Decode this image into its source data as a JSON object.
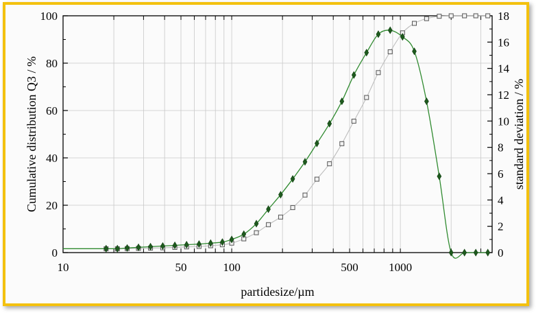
{
  "colors": {
    "frame": "#f3c10e",
    "cumulative_series": "#bdbdbd",
    "deviation_series": "#2f8a2f",
    "deviation_marker": "#1e5a1e",
    "grid": "#c8c8c8"
  },
  "chart_data": {
    "type": "line",
    "title": "",
    "xlabel": "partidesize/µm",
    "ylabel": "Cumulative distribution Q3 / %",
    "y2label": "standard deviation / %",
    "xscale": "log",
    "xlim": [
      10,
      3500
    ],
    "ylim": [
      0,
      100
    ],
    "y2lim": [
      0,
      18
    ],
    "x_ticks": [
      10,
      50,
      100,
      500,
      1000
    ],
    "x_tick_labels": [
      "10",
      "50",
      "100",
      "500",
      "1000"
    ],
    "y_ticks": [
      0,
      20,
      40,
      60,
      80,
      100
    ],
    "y_tick_labels": [
      "0",
      "20",
      "40",
      "60",
      "80",
      "100"
    ],
    "y2_ticks": [
      0,
      2,
      4,
      6,
      8,
      10,
      12,
      14,
      16,
      18
    ],
    "y2_tick_labels": [
      "0",
      "2",
      "4",
      "6",
      "8",
      "10",
      "12",
      "14",
      "16",
      "18"
    ],
    "grid": true,
    "legend": "none",
    "series": [
      {
        "axis": "left",
        "marker": "square",
        "x": [
          18,
          21,
          24,
          28,
          33,
          39,
          46,
          54,
          64,
          75,
          88,
          100,
          118,
          140,
          165,
          195,
          230,
          272,
          320,
          380,
          450,
          530,
          630,
          740,
          870,
          1030,
          1210,
          1430,
          1700,
          2000,
          2400,
          2800,
          3300
        ],
        "values": [
          1.6,
          1.6,
          1.7,
          1.8,
          1.9,
          2.0,
          2.2,
          2.4,
          2.6,
          2.9,
          3.3,
          4.0,
          5.8,
          8.4,
          11.8,
          15.0,
          19.0,
          24.3,
          31.0,
          37.5,
          46.0,
          55.5,
          65.5,
          76.0,
          84.8,
          92.8,
          96.8,
          98.8,
          99.8,
          100,
          100,
          100,
          100
        ]
      },
      {
        "axis": "right",
        "marker": "diamond",
        "x": [
          18,
          21,
          24,
          28,
          33,
          39,
          46,
          54,
          64,
          75,
          88,
          100,
          118,
          140,
          165,
          195,
          230,
          272,
          320,
          380,
          450,
          530,
          630,
          740,
          870,
          1030,
          1210,
          1430,
          1700,
          2000,
          2400,
          2800,
          3300
        ],
        "values": [
          0.3,
          0.3,
          0.35,
          0.4,
          0.45,
          0.5,
          0.55,
          0.6,
          0.65,
          0.72,
          0.8,
          1.0,
          1.4,
          2.2,
          3.3,
          4.4,
          5.6,
          6.9,
          8.3,
          9.8,
          11.5,
          13.5,
          15.2,
          16.6,
          16.9,
          16.4,
          15.3,
          11.5,
          5.8,
          0.0,
          0.0,
          0.0,
          0.0
        ]
      }
    ]
  }
}
